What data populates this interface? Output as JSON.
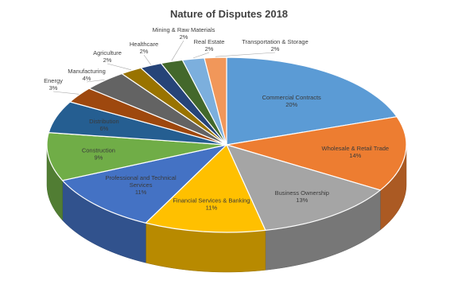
{
  "chart_data": {
    "type": "pie",
    "title": "Nature of Disputes 2018",
    "slices": [
      {
        "label": "Commercial Contracts",
        "value": 20,
        "value_label": "20%",
        "color": "#5B9BD5"
      },
      {
        "label": "Wholesale & Retail Trade",
        "value": 14,
        "value_label": "14%",
        "color": "#ED7D31"
      },
      {
        "label": "Business Ownership",
        "value": 13,
        "value_label": "13%",
        "color": "#A5A5A5"
      },
      {
        "label": "Financial Services & Banking",
        "value": 11,
        "value_label": "11%",
        "color": "#FFC000"
      },
      {
        "label": "Professional and Technical Services",
        "value": 11,
        "value_label": "11%",
        "color": "#4472C4"
      },
      {
        "label": "Construction",
        "value": 9,
        "value_label": "9%",
        "color": "#70AD47"
      },
      {
        "label": "Distribution",
        "value": 6,
        "value_label": "6%",
        "color": "#255E91"
      },
      {
        "label": "Energy",
        "value": 3,
        "value_label": "3%",
        "color": "#9E480E"
      },
      {
        "label": "Manufacturing",
        "value": 4,
        "value_label": "4%",
        "color": "#636363"
      },
      {
        "label": "Agriculture",
        "value": 2,
        "value_label": "2%",
        "color": "#997300"
      },
      {
        "label": "Healthcare",
        "value": 2,
        "value_label": "2%",
        "color": "#264478"
      },
      {
        "label": "Mining & Raw Materials",
        "value": 2,
        "value_label": "2%",
        "color": "#43682B"
      },
      {
        "label": "Real Estate",
        "value": 2,
        "value_label": "2%",
        "color": "#7CAFDD"
      },
      {
        "label": "Transportation & Storage",
        "value": 2,
        "value_label": "2%",
        "color": "#F1975A"
      }
    ]
  }
}
